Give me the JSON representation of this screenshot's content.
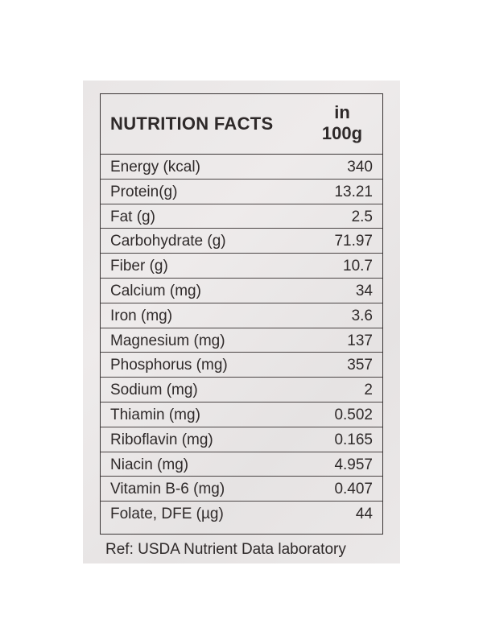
{
  "header": {
    "title": "NUTRITION FACTS",
    "unit_line1": "in",
    "unit_line2": "100g"
  },
  "rows": [
    {
      "label": "Energy (kcal)",
      "value": "340"
    },
    {
      "label": "Protein(g)",
      "value": "13.21"
    },
    {
      "label": "Fat (g)",
      "value": "2.5"
    },
    {
      "label": "Carbohydrate (g)",
      "value": "71.97"
    },
    {
      "label": "Fiber (g)",
      "value": "10.7"
    },
    {
      "label": "Calcium (mg)",
      "value": "34"
    },
    {
      "label": "Iron (mg)",
      "value": "3.6"
    },
    {
      "label": "Magnesium (mg)",
      "value": "137"
    },
    {
      "label": "Phosphorus (mg)",
      "value": "357"
    },
    {
      "label": "Sodium (mg)",
      "value": "2"
    },
    {
      "label": "Thiamin (mg)",
      "value": "0.502"
    },
    {
      "label": "Riboflavin (mg)",
      "value": "0.165"
    },
    {
      "label": "Niacin (mg)",
      "value": "4.957"
    },
    {
      "label": "Vitamin B-6 (mg)",
      "value": "0.407"
    },
    {
      "label": "Folate, DFE (µg)",
      "value": "44"
    }
  ],
  "reference": "Ref: USDA Nutrient Data laboratory",
  "colors": {
    "label_background": "#e9e6e6",
    "ink": "#2f2a2a"
  }
}
